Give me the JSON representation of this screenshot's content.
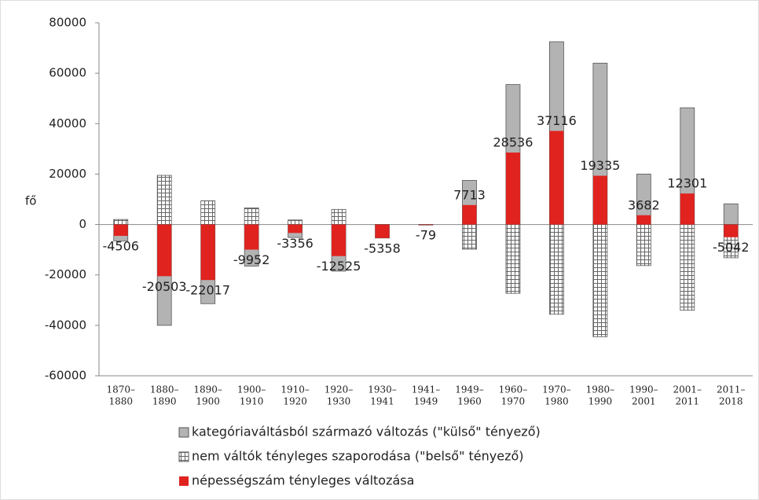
{
  "chart_data": {
    "type": "bar",
    "y_label": "fő",
    "categories": [
      [
        "1870–",
        "1880"
      ],
      [
        "1880–",
        "1890"
      ],
      [
        "1890–",
        "1900"
      ],
      [
        "1900–",
        "1910"
      ],
      [
        "1910–",
        "1920"
      ],
      [
        "1920–",
        "1930"
      ],
      [
        "1930–",
        "1941"
      ],
      [
        "1941–",
        "1949"
      ],
      [
        "1949–",
        "1960"
      ],
      [
        "1960–",
        "1970"
      ],
      [
        "1970–",
        "1980"
      ],
      [
        "1980–",
        "1990"
      ],
      [
        "1990–",
        "2001"
      ],
      [
        "2001–",
        "2011"
      ],
      [
        "2011–",
        "2018"
      ]
    ],
    "series": [
      {
        "name": "kategóriaváltásból származó változás (\"külső\" tényező)",
        "color": "#b3b3b3",
        "values": [
          -6500,
          -40000,
          -31400,
          -16500,
          -5150,
          -18500,
          -5358,
          0,
          17500,
          55500,
          72500,
          64000,
          20000,
          46300,
          8200
        ]
      },
      {
        "name": "nem váltók tényleges szaporodása (\"belső\" tényező)",
        "color": "#ffffff",
        "pattern": "grid",
        "values": [
          2000,
          19500,
          9400,
          6600,
          1800,
          6000,
          0,
          -79,
          -9800,
          -27300,
          -35600,
          -44500,
          -16300,
          -34000,
          -13200
        ]
      },
      {
        "name": "népességszám tényleges változása",
        "color": "#e0231f",
        "overlay": true,
        "values": [
          -4506,
          -20503,
          -22017,
          -9952,
          -3356,
          -12525,
          -5358,
          -79,
          7713,
          28536,
          37116,
          19335,
          3682,
          12301,
          -5042
        ]
      }
    ],
    "ylim": [
      -60000,
      80000
    ],
    "yticks": [
      -60000,
      -40000,
      -20000,
      0,
      20000,
      40000,
      60000,
      80000
    ],
    "grid": false,
    "legend": "bottom"
  }
}
